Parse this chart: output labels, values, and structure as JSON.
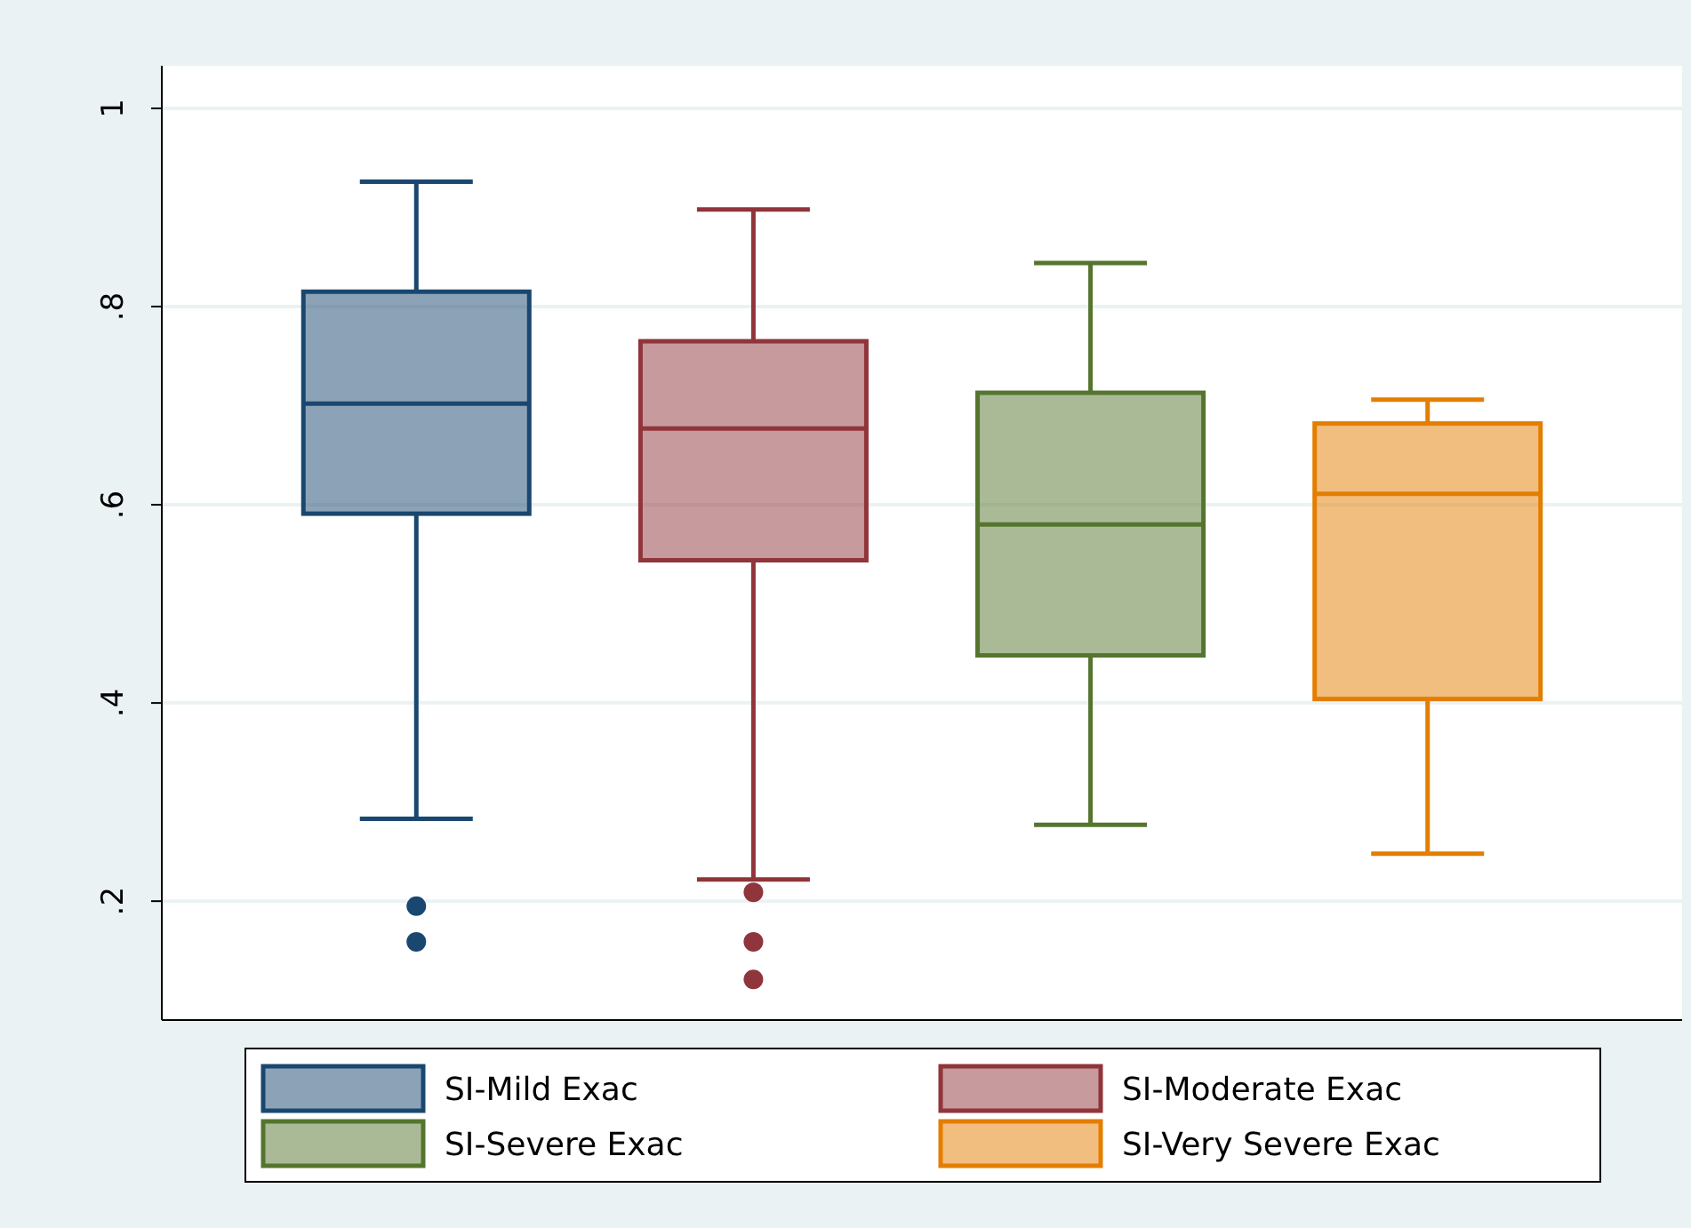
{
  "chart_data": {
    "type": "box",
    "categories": [
      null
    ],
    "series": [
      {
        "name": "SI-Mild Exac",
        "color": "#1a476f",
        "boxes": [
          {
            "low": 0.283,
            "q1": 0.591,
            "median": 0.702,
            "q3": 0.815,
            "high": 0.926,
            "outliers": [
              0.195,
              0.159
            ]
          }
        ]
      },
      {
        "name": "SI-Moderate Exac",
        "color": "#90353b",
        "boxes": [
          {
            "low": 0.222,
            "q1": 0.544,
            "median": 0.677,
            "q3": 0.765,
            "high": 0.898,
            "outliers": [
              0.209,
              0.159,
              0.121
            ]
          }
        ]
      },
      {
        "name": "SI-Severe Exac",
        "color": "#55752f",
        "boxes": [
          {
            "low": 0.277,
            "q1": 0.448,
            "median": 0.58,
            "q3": 0.713,
            "high": 0.844
          }
        ]
      },
      {
        "name": "SI-Very Severe Exac",
        "color": "#e37e00",
        "boxes": [
          {
            "low": 0.248,
            "q1": 0.404,
            "median": 0.611,
            "q3": 0.682,
            "high": 0.706
          }
        ]
      }
    ],
    "ylim": [
      0.08,
      1.043
    ],
    "yticks": [
      {
        "value": 0.2,
        "label": ".2"
      },
      {
        "value": 0.4,
        "label": ".4"
      },
      {
        "value": 0.6,
        "label": ".6"
      },
      {
        "value": 0.8,
        "label": ".8"
      },
      {
        "value": 1,
        "label": "1"
      }
    ],
    "grid": "y",
    "legend": "bottom"
  }
}
